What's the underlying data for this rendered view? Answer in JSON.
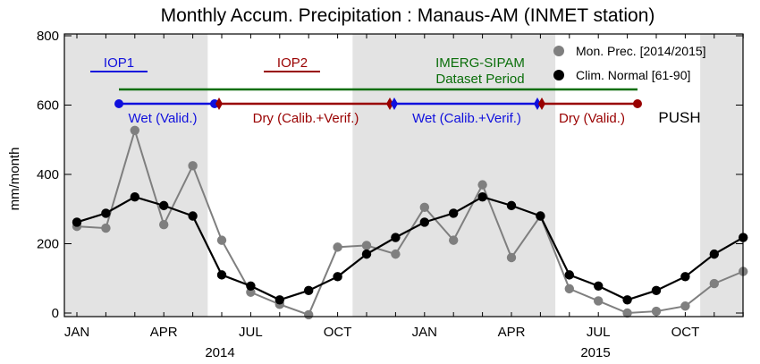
{
  "chart_data": {
    "type": "line",
    "title": "Monthly Accum. Precipitation : Manaus-AM (INMET station)",
    "xlabel": "",
    "ylabel": "mm/month",
    "ylim": [
      0,
      800
    ],
    "yticks": [
      0,
      200,
      400,
      600,
      800
    ],
    "x_tick_labels": [
      "JAN",
      "APR",
      "JUL",
      "OCT",
      "JAN",
      "APR",
      "JUL",
      "OCT"
    ],
    "year_labels": [
      "2014",
      "2015"
    ],
    "months": 24,
    "series": [
      {
        "name": "Mon. Prec. [2014/2015]",
        "color": "#7f7f7f",
        "values": [
          250,
          245,
          527,
          255,
          425,
          210,
          60,
          25,
          -5,
          190,
          195,
          170,
          305,
          210,
          370,
          160,
          280,
          70,
          35,
          0,
          5,
          20,
          85,
          120
        ]
      },
      {
        "name": "Clim. Normal [61-90]",
        "color": "#000000",
        "values": [
          262,
          288,
          335,
          310,
          280,
          110,
          78,
          38,
          65,
          105,
          170,
          218,
          262,
          288,
          335,
          310,
          280,
          110,
          78,
          38,
          65,
          105,
          170,
          218
        ]
      }
    ],
    "legend_position": "top-right",
    "grid": false,
    "shaded_bands_months": [
      [
        0,
        5
      ],
      [
        10,
        17
      ],
      [
        22,
        24
      ]
    ],
    "annotations": {
      "iop1": "IOP1",
      "iop2": "IOP2",
      "imerg_line1": "IMERG-SIPAM",
      "imerg_line2": "Dataset Period",
      "wet_valid": "Wet (Valid.)",
      "dry_calib": "Dry (Calib.+Verif.)",
      "wet_calib": "Wet (Calib.+Verif.)",
      "dry_valid": "Dry (Valid.)",
      "push": "PUSH"
    },
    "colors": {
      "blue": "#1010dd",
      "darkred": "#990000",
      "green": "#0a6e0a",
      "shade": "#e3e3e3"
    }
  }
}
